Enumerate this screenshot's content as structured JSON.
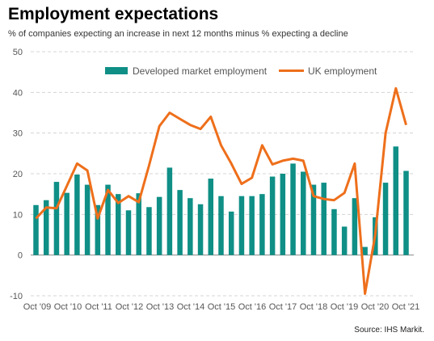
{
  "title": "Employment expectations",
  "subtitle": "% of companies expecting an increase in next 12 months minus % expecting a decline",
  "source": "Source: IHS Markit.",
  "chart_data": {
    "type": "bar",
    "xlabel": "",
    "ylabel": "",
    "ylim": [
      -10,
      50
    ],
    "yticks": [
      -10,
      0,
      10,
      20,
      30,
      40,
      50
    ],
    "grid": true,
    "legend": "top",
    "x_tick_labels": [
      "Oct '09",
      "Oct '10",
      "Oct '11",
      "Oct '12",
      "Oct '13",
      "Oct '14",
      "Oct '15",
      "Oct '16",
      "Oct '17",
      "Oct '18",
      "Oct '19",
      "Oct '20",
      "Oct '21"
    ],
    "series": [
      {
        "name": "Developed market employment",
        "type": "bar",
        "color": "#0f8f86",
        "values": [
          12.3,
          13.5,
          18.0,
          15.3,
          19.8,
          17.3,
          12.3,
          17.3,
          15.0,
          11.0,
          15.2,
          11.8,
          14.3,
          21.5,
          16.0,
          14.0,
          12.5,
          18.8,
          14.5,
          10.7,
          14.5,
          14.5,
          15.0,
          19.3,
          20.0,
          22.5,
          20.5,
          17.3,
          17.8,
          11.3,
          7.0,
          14.0,
          2.0,
          9.3,
          17.8,
          26.7,
          20.7
        ]
      },
      {
        "name": "UK employment",
        "type": "line",
        "color": "#ee6f1b",
        "values": [
          9.0,
          11.7,
          11.5,
          17.0,
          22.5,
          20.8,
          9.0,
          16.0,
          12.8,
          14.5,
          13.0,
          22.0,
          31.7,
          35.0,
          33.5,
          32.0,
          31.0,
          34.0,
          27.0,
          22.5,
          17.5,
          19.0,
          27.0,
          22.3,
          23.2,
          23.7,
          23.2,
          14.5,
          13.8,
          13.5,
          15.3,
          22.5,
          -9.5,
          5.0,
          30.0,
          41.0,
          32.0
        ]
      }
    ]
  }
}
